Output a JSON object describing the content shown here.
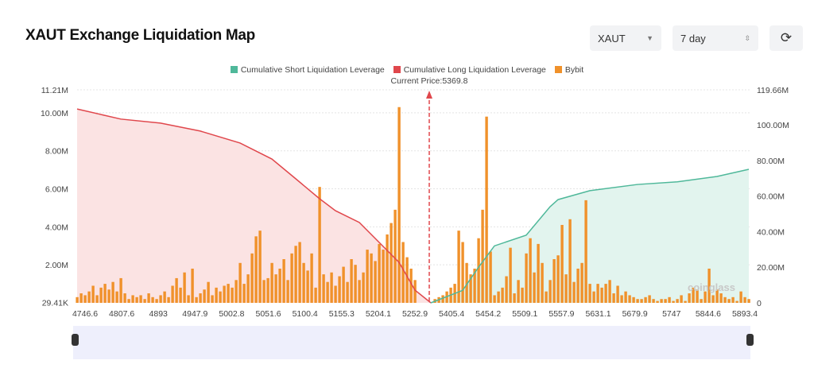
{
  "header": {
    "title": "XAUT Exchange Liquidation Map",
    "symbol_select": "XAUT",
    "period_select": "7 day"
  },
  "colors": {
    "short": "#4fb89a",
    "long": "#e0474c",
    "bybit": "#f0912a",
    "long_fill": "#fbe3e3",
    "short_fill": "#e2f4ee"
  },
  "chart_data": {
    "type": "bar",
    "title": "XAUT Exchange Liquidation Map",
    "current_price_label": "Current Price:5369.8",
    "legend": [
      "Cumulative Short Liquidation Leverage",
      "Cumulative Long Liquidation Leverage",
      "Bybit"
    ],
    "left_axis": {
      "ticks": [
        "29.41K",
        "2.00M",
        "4.00M",
        "6.00M",
        "8.00M",
        "10.00M",
        "11.21M"
      ],
      "tick_values": [
        0.02941,
        2,
        4,
        6,
        8,
        10,
        11.21
      ],
      "ylim": [
        0,
        11.21
      ]
    },
    "right_axis": {
      "ticks": [
        "0",
        "20.00M",
        "40.00M",
        "60.00M",
        "80.00M",
        "100.00M",
        "119.66M"
      ],
      "tick_values": [
        0,
        20,
        40,
        60,
        80,
        100,
        119.66
      ],
      "ylim": [
        0,
        119.66
      ]
    },
    "x_ticks": [
      "4746.6",
      "4807.6",
      "4893",
      "4947.9",
      "5002.8",
      "5051.6",
      "5100.4",
      "5155.3",
      "5204.1",
      "5252.9",
      "5405.4",
      "5454.2",
      "5509.1",
      "5557.9",
      "5631.1",
      "5679.9",
      "5747",
      "5844.6",
      "5893.4"
    ],
    "bybit_values_M": [
      0.3,
      0.5,
      0.4,
      0.6,
      0.9,
      0.4,
      0.8,
      1.0,
      0.7,
      1.1,
      0.6,
      1.3,
      0.5,
      0.2,
      0.4,
      0.3,
      0.4,
      0.2,
      0.5,
      0.3,
      0.2,
      0.4,
      0.6,
      0.3,
      0.9,
      1.3,
      0.8,
      1.6,
      0.4,
      1.8,
      0.3,
      0.5,
      0.7,
      1.1,
      0.4,
      0.8,
      0.6,
      0.9,
      1.0,
      0.8,
      1.2,
      2.1,
      1.0,
      1.5,
      2.6,
      3.5,
      3.8,
      1.2,
      1.3,
      2.1,
      1.5,
      1.8,
      2.3,
      1.2,
      2.6,
      3.0,
      3.2,
      2.1,
      1.7,
      2.6,
      0.8,
      6.1,
      1.5,
      1.1,
      1.6,
      0.9,
      1.4,
      1.9,
      1.1,
      2.3,
      2.0,
      1.2,
      1.6,
      2.8,
      2.6,
      2.2,
      3.1,
      2.8,
      3.6,
      4.2,
      4.9,
      10.3,
      3.2,
      2.4,
      1.8,
      1.2,
      0,
      0,
      0,
      0,
      0.2,
      0.3,
      0.4,
      0.6,
      0.8,
      1.0,
      3.8,
      3.2,
      2.1,
      1.5,
      1.8,
      3.4,
      4.9,
      9.8,
      2.7,
      0.4,
      0.6,
      0.8,
      1.4,
      2.9,
      0.5,
      1.2,
      0.8,
      2.6,
      3.4,
      1.6,
      3.1,
      2.1,
      0.6,
      1.2,
      2.3,
      2.5,
      4.1,
      1.5,
      4.4,
      1.1,
      1.8,
      2.1,
      5.4,
      1.0,
      0.6,
      1.0,
      0.8,
      1.0,
      1.2,
      0.5,
      0.9,
      0.4,
      0.6,
      0.4,
      0.3,
      0.2,
      0.2,
      0.3,
      0.4,
      0.2,
      0.1,
      0.2,
      0.2,
      0.3,
      0.1,
      0.2,
      0.4,
      0.1,
      0.5,
      0.8,
      0.7,
      0.2,
      0.6,
      1.8,
      0.4,
      0.7,
      0.5,
      0.3,
      0.2,
      0.3,
      0.1,
      0.6,
      0.3,
      0.2
    ],
    "cumulative_long_M": [
      [
        0,
        10.2
      ],
      [
        11,
        9.67
      ],
      [
        21,
        9.46
      ],
      [
        31,
        9.04
      ],
      [
        41,
        8.41
      ],
      [
        49,
        7.57
      ],
      [
        55,
        6.53
      ],
      [
        61,
        5.48
      ],
      [
        65,
        4.85
      ],
      [
        71,
        4.23
      ],
      [
        77,
        2.97
      ],
      [
        81,
        2.13
      ],
      [
        85,
        0.67
      ],
      [
        89,
        0
      ]
    ],
    "cumulative_short_M": [
      [
        89,
        0
      ],
      [
        97,
        7
      ],
      [
        101,
        20
      ],
      [
        105,
        32
      ],
      [
        113,
        38
      ],
      [
        119,
        54
      ],
      [
        121,
        58
      ],
      [
        129,
        63
      ],
      [
        141,
        66.5
      ],
      [
        151,
        68
      ],
      [
        161,
        71
      ],
      [
        169,
        75
      ]
    ],
    "current_price_index": 88.6
  },
  "watermark": "coinglass"
}
